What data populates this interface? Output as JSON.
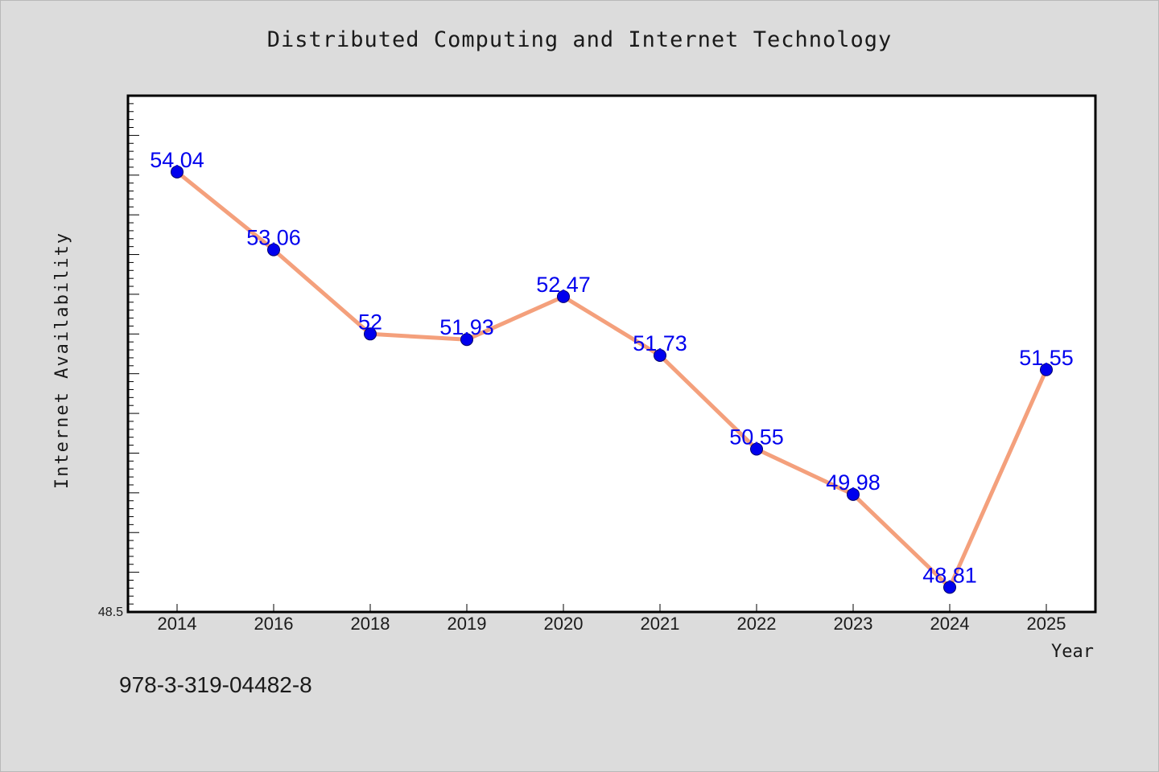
{
  "chart_data": {
    "type": "line",
    "title": "Distributed Computing and Internet Technology",
    "xlabel": "Year",
    "ylabel": "Internet Availability",
    "categories": [
      "2014",
      "2016",
      "2018",
      "2019",
      "2020",
      "2021",
      "2022",
      "2023",
      "2024",
      "2025"
    ],
    "series": [
      {
        "values": [
          54.04,
          53.06,
          52,
          51.93,
          52.47,
          51.73,
          50.55,
          49.98,
          48.81,
          51.55
        ],
        "labels": [
          "54.04",
          "53.06",
          "52",
          "51.93",
          "52.47",
          "51.73",
          "50.55",
          "49.98",
          "48.81",
          "51.55"
        ]
      }
    ],
    "ylim": [
      48.5,
      55
    ],
    "ymin_label": "48.5",
    "grid": false,
    "legend": "none",
    "colors": {
      "line": "#f4a07c",
      "marker": "#0000ee",
      "data_label": "#0000ee",
      "background": "#dcdcdc",
      "plot_area": "#ffffff"
    }
  },
  "footer": {
    "code": "978-3-319-04482-8"
  }
}
